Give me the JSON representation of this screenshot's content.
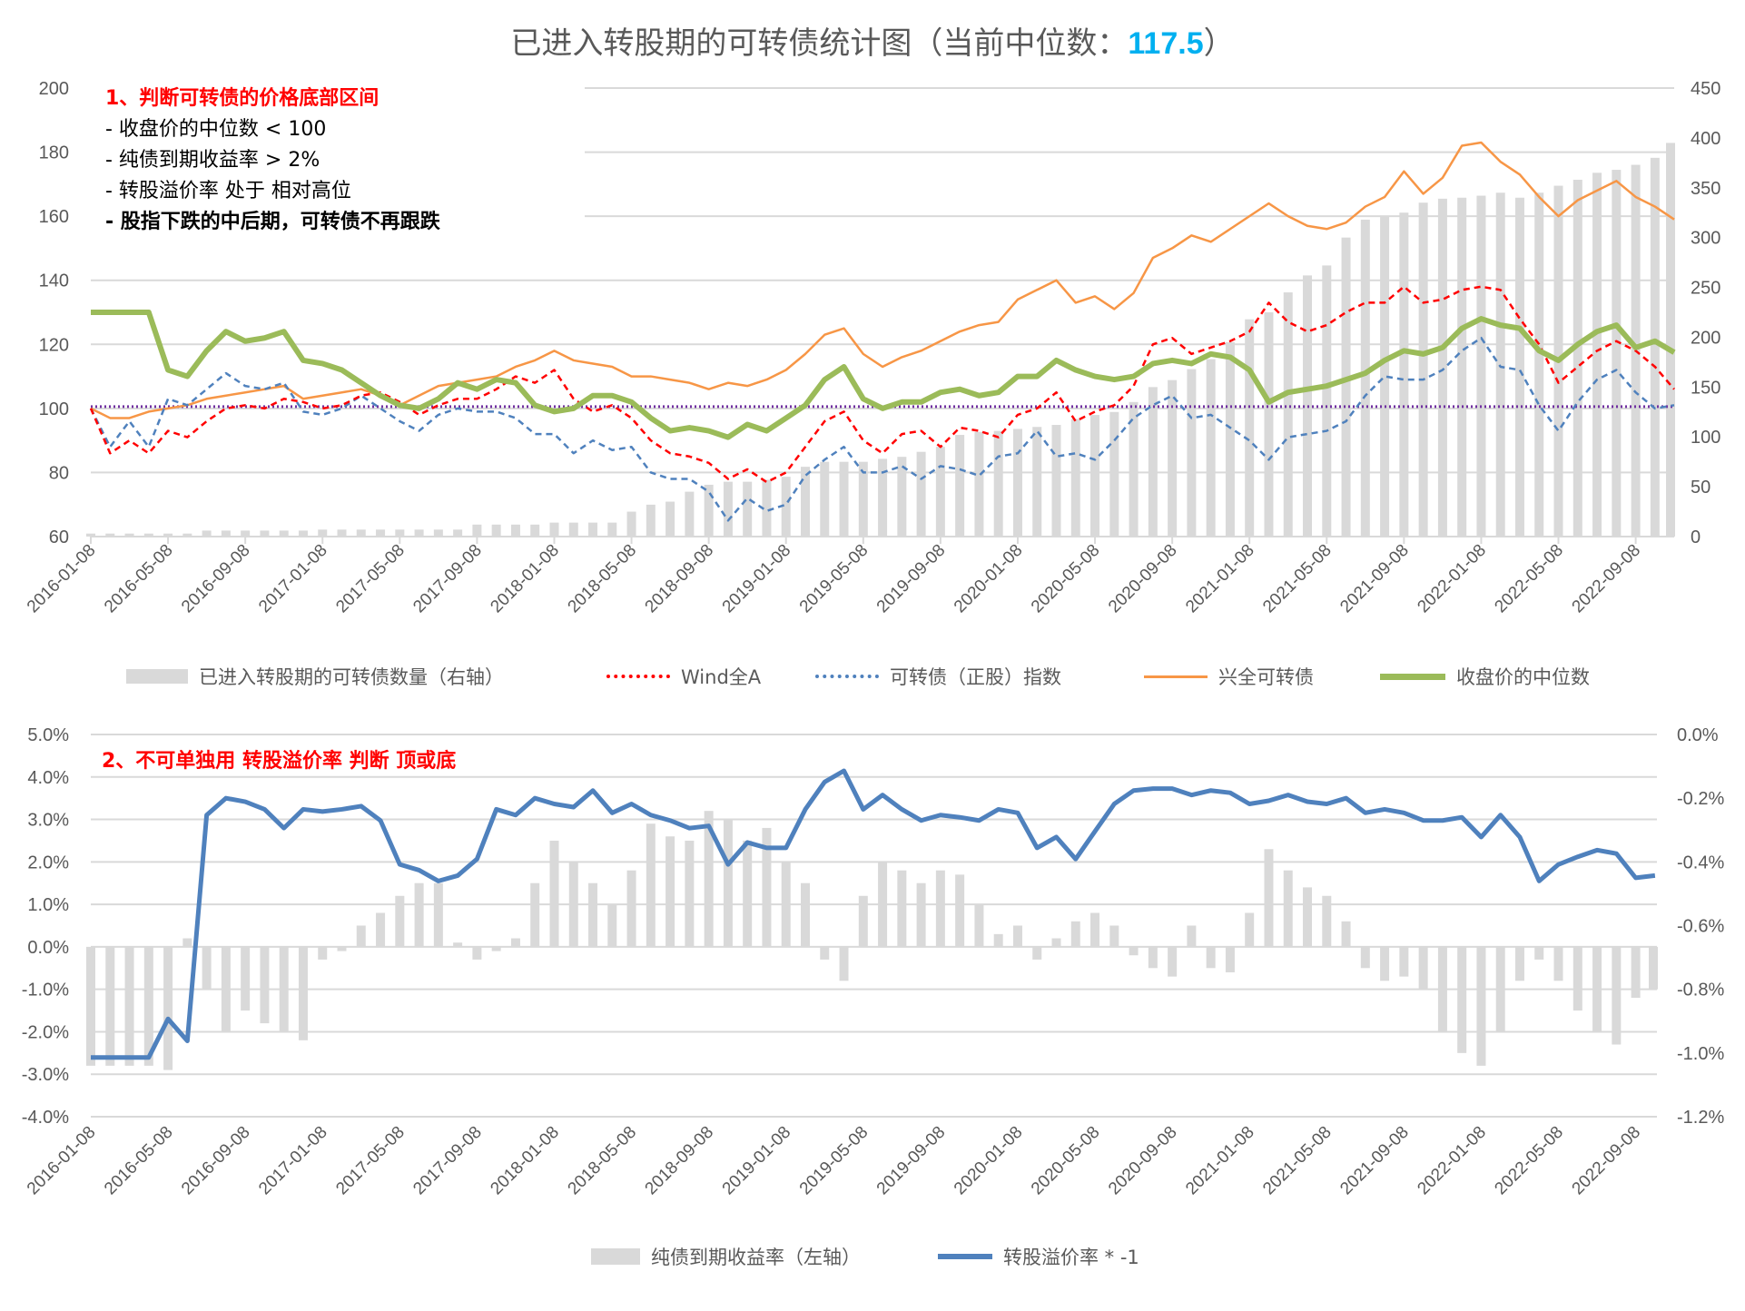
{
  "title": {
    "prefix": "已进入转股期的可转债统计图（当前中位数：",
    "value": "117.5",
    "suffix": "）"
  },
  "annotations": {
    "top_heading": "1、判断可转债的价格底部区间",
    "top_lines": [
      "- 收盘价的中位数 < 100",
      "- 纯债到期收益率 > 2%",
      "- 转股溢价率 处于 相对高位",
      "- 股指下跌的中后期，可转债不再跟跌"
    ],
    "bottom_heading": "2、不可单独用 转股溢价率 判断 顶或底"
  },
  "colors": {
    "bars": "#d9d9d9",
    "wind": "#ff0000",
    "index": "#4f81bd",
    "xq": "#f79646",
    "median": "#9bbb59",
    "ref": "#7030a0",
    "premium": "#4f81bd",
    "highlight": "#00b0f0"
  },
  "chart_data": [
    {
      "type": "bar+line",
      "title": "已进入转股期的可转债统计图（当前中位数：117.5）",
      "x": [
        "2016-01-08",
        "2016-02-08",
        "2016-03-08",
        "2016-04-08",
        "2016-05-08",
        "2016-06-08",
        "2016-07-08",
        "2016-08-08",
        "2016-09-08",
        "2016-10-08",
        "2016-11-08",
        "2016-12-08",
        "2017-01-08",
        "2017-02-08",
        "2017-03-08",
        "2017-04-08",
        "2017-05-08",
        "2017-06-08",
        "2017-07-08",
        "2017-08-08",
        "2017-09-08",
        "2017-10-08",
        "2017-11-08",
        "2017-12-08",
        "2018-01-08",
        "2018-02-08",
        "2018-03-08",
        "2018-04-08",
        "2018-05-08",
        "2018-06-08",
        "2018-07-08",
        "2018-08-08",
        "2018-09-08",
        "2018-10-08",
        "2018-11-08",
        "2018-12-08",
        "2019-01-08",
        "2019-02-08",
        "2019-03-08",
        "2019-04-08",
        "2019-05-08",
        "2019-06-08",
        "2019-07-08",
        "2019-08-08",
        "2019-09-08",
        "2019-10-08",
        "2019-11-08",
        "2019-12-08",
        "2020-01-08",
        "2020-02-08",
        "2020-03-08",
        "2020-04-08",
        "2020-05-08",
        "2020-06-08",
        "2020-07-08",
        "2020-08-08",
        "2020-09-08",
        "2020-10-08",
        "2020-11-08",
        "2020-12-08",
        "2021-01-08",
        "2021-02-08",
        "2021-03-08",
        "2021-04-08",
        "2021-05-08",
        "2021-06-08",
        "2021-07-08",
        "2021-08-08",
        "2021-09-08",
        "2021-10-08",
        "2021-11-08",
        "2021-12-08",
        "2022-01-08",
        "2022-02-08",
        "2022-03-08",
        "2022-04-08",
        "2022-05-08",
        "2022-06-08",
        "2022-07-08",
        "2022-08-08",
        "2022-09-08",
        "2022-10-08",
        "2022-11-08"
      ],
      "x_tick_labels": [
        "2016-01-08",
        "2016-05-08",
        "2016-09-08",
        "2017-01-08",
        "2017-05-08",
        "2017-09-08",
        "2018-01-08",
        "2018-05-08",
        "2018-09-08",
        "2019-01-08",
        "2019-05-08",
        "2019-09-08",
        "2020-01-08",
        "2020-05-08",
        "2020-09-08",
        "2021-01-08",
        "2021-05-08",
        "2021-09-08",
        "2022-01-08",
        "2022-05-08",
        "2022-09-08"
      ],
      "y_left": {
        "range": [
          60,
          200
        ],
        "ticks": [
          "200",
          "180",
          "160",
          "140",
          "120",
          "100",
          "80",
          "60"
        ]
      },
      "y_right": {
        "range": [
          0,
          450
        ],
        "ticks": [
          "450",
          "400",
          "350",
          "300",
          "250",
          "200",
          "150",
          "100",
          "50",
          "0"
        ]
      },
      "reference_line_left": 100,
      "series": [
        {
          "name": "已进入转股期的可转债数量（右轴）",
          "type": "bar",
          "axis": "right",
          "values": [
            3,
            3,
            3,
            3,
            3,
            3,
            6,
            6,
            6,
            6,
            6,
            6,
            7,
            7,
            7,
            7,
            7,
            7,
            7,
            7,
            12,
            12,
            12,
            12,
            14,
            14,
            14,
            14,
            25,
            32,
            35,
            45,
            52,
            55,
            55,
            57,
            60,
            70,
            75,
            75,
            75,
            78,
            80,
            85,
            90,
            102,
            105,
            106,
            108,
            110,
            112,
            118,
            122,
            125,
            135,
            150,
            157,
            168,
            178,
            195,
            218,
            225,
            245,
            262,
            272,
            300,
            318,
            322,
            325,
            335,
            339,
            340,
            342,
            345,
            340,
            345,
            352,
            358,
            365,
            368,
            373,
            380,
            395
          ]
        },
        {
          "name": "Wind全A",
          "type": "line",
          "style": "dashed",
          "axis": "left",
          "values": [
            100,
            86,
            90,
            86,
            93,
            91,
            96,
            100,
            101,
            100,
            103,
            102,
            100,
            101,
            104,
            105,
            102,
            98,
            101,
            103,
            103,
            106,
            110,
            108,
            112,
            103,
            99,
            101,
            97,
            90,
            86,
            85,
            83,
            78,
            81,
            77,
            80,
            88,
            96,
            99,
            90,
            86,
            92,
            93,
            88,
            94,
            93,
            91,
            98,
            100,
            105,
            96,
            99,
            101,
            107,
            120,
            122,
            117,
            119,
            121,
            124,
            133,
            127,
            124,
            126,
            130,
            133,
            133,
            138,
            133,
            134,
            137,
            138,
            137,
            128,
            120,
            108,
            113,
            118,
            121,
            118,
            113,
            106
          ]
        },
        {
          "name": "可转债（正股）指数",
          "type": "line",
          "style": "dashed",
          "axis": "left",
          "values": [
            100,
            88,
            96,
            88,
            103,
            101,
            106,
            111,
            107,
            106,
            108,
            99,
            98,
            100,
            104,
            100,
            96,
            93,
            98,
            100,
            99,
            99,
            97,
            92,
            92,
            86,
            90,
            87,
            88,
            80,
            78,
            78,
            74,
            65,
            72,
            68,
            70,
            79,
            84,
            88,
            80,
            80,
            82,
            78,
            82,
            81,
            79,
            85,
            86,
            93,
            85,
            86,
            84,
            90,
            97,
            101,
            104,
            97,
            98,
            94,
            90,
            84,
            91,
            92,
            93,
            96,
            104,
            110,
            109,
            109,
            112,
            118,
            122,
            113,
            112,
            101,
            93,
            102,
            109,
            112,
            105,
            100,
            101
          ]
        },
        {
          "name": "兴全可转债",
          "type": "line",
          "style": "solid",
          "axis": "left",
          "values": [
            100,
            97,
            97,
            99,
            100,
            101,
            103,
            104,
            105,
            106,
            107,
            103,
            104,
            105,
            106,
            104,
            101,
            104,
            107,
            108,
            109,
            110,
            113,
            115,
            118,
            115,
            114,
            113,
            110,
            110,
            109,
            108,
            106,
            108,
            107,
            109,
            112,
            117,
            123,
            125,
            117,
            113,
            116,
            118,
            121,
            124,
            126,
            127,
            134,
            137,
            140,
            133,
            135,
            131,
            136,
            147,
            150,
            154,
            152,
            156,
            160,
            164,
            160,
            157,
            156,
            158,
            163,
            166,
            174,
            167,
            172,
            182,
            183,
            177,
            173,
            166,
            160,
            165,
            168,
            171,
            166,
            163,
            159
          ]
        },
        {
          "name": "收盘价的中位数",
          "type": "line",
          "style": "thick",
          "axis": "left",
          "values": [
            130,
            130,
            130,
            130,
            112,
            110,
            118,
            124,
            121,
            122,
            124,
            115,
            114,
            112,
            108,
            104,
            101,
            100,
            103,
            108,
            106,
            109,
            108,
            101,
            99,
            100,
            104,
            104,
            102,
            97,
            93,
            94,
            93,
            91,
            95,
            93,
            97,
            101,
            109,
            113,
            103,
            100,
            102,
            102,
            105,
            106,
            104,
            105,
            110,
            110,
            115,
            112,
            110,
            109,
            110,
            114,
            115,
            114,
            117,
            116,
            112,
            102,
            105,
            106,
            107,
            109,
            111,
            115,
            118,
            117,
            119,
            125,
            128,
            126,
            125,
            118,
            115,
            120,
            124,
            126,
            119,
            121,
            117.5
          ]
        }
      ]
    },
    {
      "type": "bar+line",
      "x_tick_labels": [
        "2016-01-08",
        "2016-05-08",
        "2016-09-08",
        "2017-01-08",
        "2017-05-08",
        "2017-09-08",
        "2018-01-08",
        "2018-05-08",
        "2018-09-08",
        "2019-01-08",
        "2019-05-08",
        "2019-09-08",
        "2020-01-08",
        "2020-05-08",
        "2020-09-08",
        "2021-01-08",
        "2021-05-08",
        "2021-09-08",
        "2022-01-08",
        "2022-05-08",
        "2022-09-08"
      ],
      "y_left": {
        "range": [
          -4.0,
          5.0
        ],
        "unit": "%",
        "ticks": [
          "5.0%",
          "4.0%",
          "3.0%",
          "2.0%",
          "1.0%",
          "0.0%",
          "-1.0%",
          "-2.0%",
          "-3.0%",
          "-4.0%"
        ]
      },
      "y_right": {
        "range": [
          -1.2,
          0.0
        ],
        "unit": "%",
        "ticks": [
          "0.0%",
          "-0.2%",
          "-0.4%",
          "-0.6%",
          "-0.8%",
          "-1.0%",
          "-1.2%"
        ]
      },
      "series": [
        {
          "name": "纯债到期收益率（左轴）",
          "type": "bar",
          "axis": "left",
          "values": [
            -2.8,
            -2.8,
            -2.8,
            -2.8,
            -2.9,
            0.2,
            -1.0,
            -2.0,
            -1.5,
            -1.8,
            -2.0,
            -2.2,
            -0.3,
            -0.1,
            0.5,
            0.8,
            1.2,
            1.5,
            1.5,
            0.1,
            -0.3,
            -0.1,
            0.2,
            1.5,
            2.5,
            2.0,
            1.5,
            1.0,
            1.8,
            2.9,
            2.6,
            2.5,
            3.2,
            3.0,
            2.5,
            2.8,
            2.0,
            1.5,
            -0.3,
            -0.8,
            1.2,
            2.0,
            1.8,
            1.5,
            1.8,
            1.7,
            1.0,
            0.3,
            0.5,
            -0.3,
            0.2,
            0.6,
            0.8,
            0.5,
            -0.2,
            -0.5,
            -0.7,
            0.5,
            -0.5,
            -0.6,
            0.8,
            2.3,
            1.8,
            1.4,
            1.2,
            0.6,
            -0.5,
            -0.8,
            -0.7,
            -1.0,
            -2.0,
            -2.5,
            -2.8,
            -2.0,
            -0.8,
            -0.3,
            -0.8,
            -1.5,
            -2.0,
            -2.3,
            -1.2,
            -1.0
          ]
        },
        {
          "name": "转股溢价率 * -1",
          "type": "line",
          "axis": "right",
          "values": [
            -1.014,
            -1.014,
            -1.014,
            -1.014,
            -0.893,
            -0.962,
            -0.253,
            -0.2,
            -0.211,
            -0.235,
            -0.294,
            -0.235,
            -0.242,
            -0.235,
            -0.225,
            -0.27,
            -0.408,
            -0.426,
            -0.46,
            -0.443,
            -0.391,
            -0.235,
            -0.253,
            -0.2,
            -0.218,
            -0.228,
            -0.176,
            -0.246,
            -0.218,
            -0.253,
            -0.27,
            -0.294,
            -0.287,
            -0.408,
            -0.339,
            -0.356,
            -0.356,
            -0.235,
            -0.149,
            -0.114,
            -0.235,
            -0.19,
            -0.235,
            -0.27,
            -0.253,
            -0.26,
            -0.27,
            -0.235,
            -0.246,
            -0.356,
            -0.322,
            -0.391,
            -0.304,
            -0.218,
            -0.176,
            -0.17,
            -0.17,
            -0.19,
            -0.176,
            -0.183,
            -0.218,
            -0.208,
            -0.19,
            -0.211,
            -0.218,
            -0.2,
            -0.246,
            -0.235,
            -0.246,
            -0.27,
            -0.27,
            -0.26,
            -0.322,
            -0.253,
            -0.322,
            -0.46,
            -0.408,
            -0.384,
            -0.363,
            -0.374,
            -0.45,
            -0.443
          ]
        }
      ]
    }
  ]
}
